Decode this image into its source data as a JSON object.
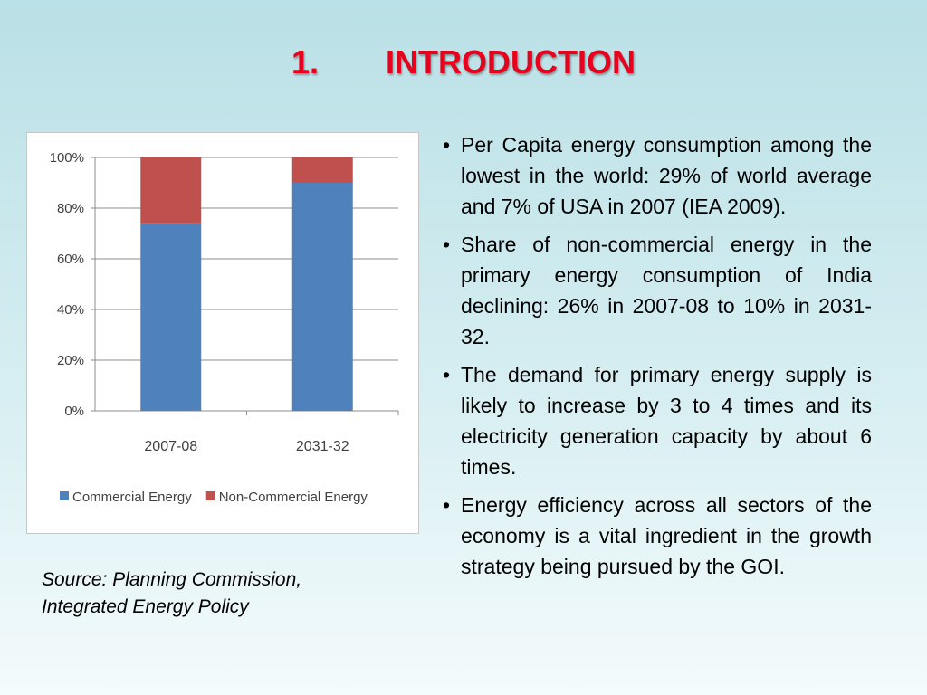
{
  "slide": {
    "title_number": "1.",
    "title_text": "INTRODUCTION",
    "title_color": "#e8001c",
    "bullet_symbol": "•",
    "bullets": [
      "Per Capita energy consumption among the lowest in the world: 29% of world average and 7% of USA in 2007 (IEA 2009).",
      "Share of non-commercial energy in the primary energy consumption of India declining: 26% in 2007-08 to 10% in 2031-32.",
      "The demand for primary energy supply is likely to increase by 3 to 4 times and its electricity generation capacity by about 6 times.",
      "Energy efficiency across all sectors of the economy is a vital ingredient in the growth strategy being pursued by the GOI."
    ],
    "source_line1": "Source: Planning Commission,",
    "source_line2": "Integrated Energy Policy"
  },
  "chart_data": {
    "type": "bar",
    "stacked": true,
    "percent": true,
    "categories": [
      "2007-08",
      "2031-32"
    ],
    "series": [
      {
        "name": "Commercial Energy",
        "values": [
          74,
          90
        ],
        "color": "#4f81bd"
      },
      {
        "name": "Non-Commercial Energy",
        "values": [
          26,
          10
        ],
        "color": "#c0504d"
      }
    ],
    "ylim": [
      0,
      100
    ],
    "yticks": [
      "0%",
      "20%",
      "40%",
      "60%",
      "80%",
      "100%"
    ],
    "grid": true,
    "legend": "bottom"
  }
}
